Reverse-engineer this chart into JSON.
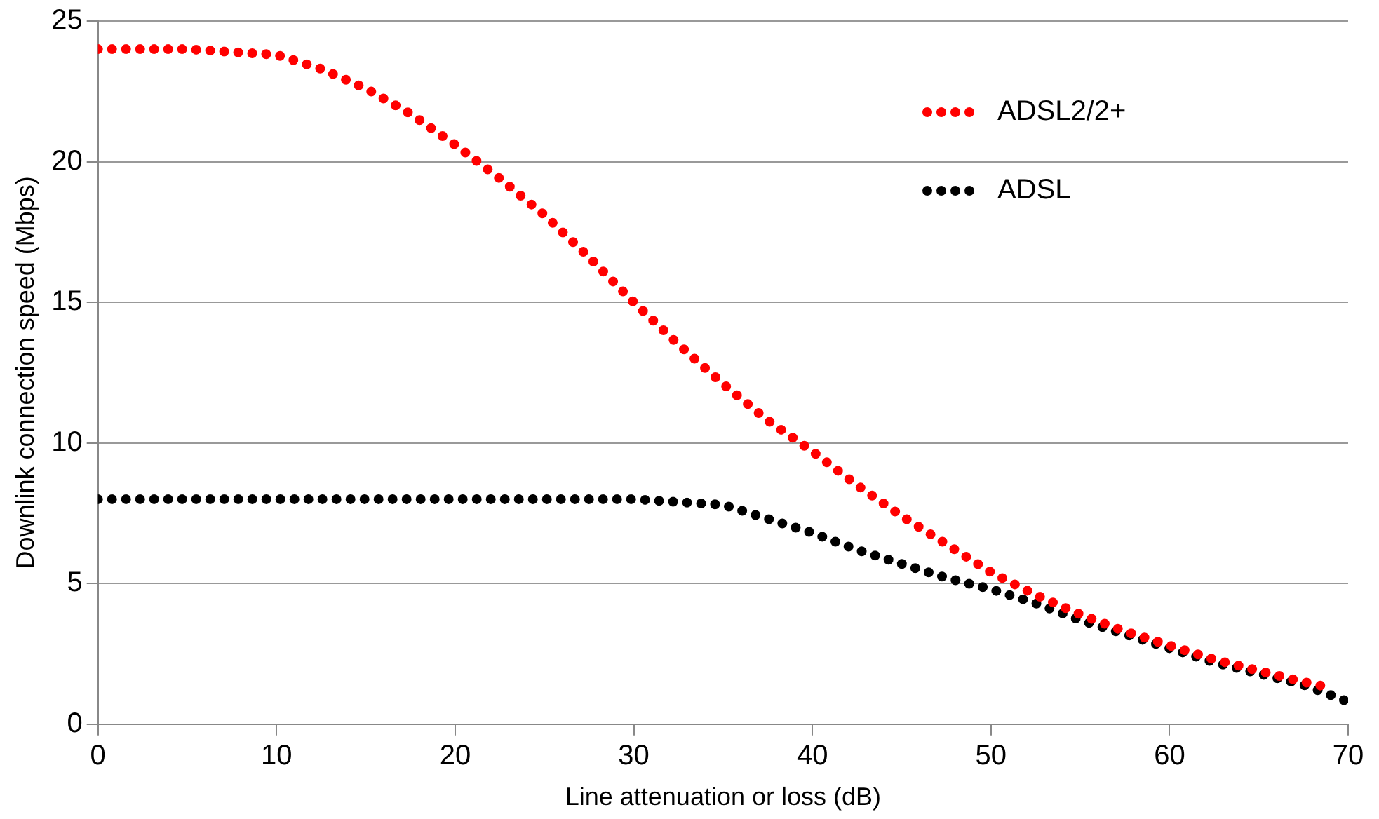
{
  "chart_data": {
    "type": "line",
    "xlabel": "Line attenuation or loss (dB)",
    "ylabel": "Downlink connection speed (Mbps)",
    "xlim": [
      0,
      70
    ],
    "xticks": [
      0,
      10,
      20,
      30,
      40,
      50,
      60,
      70
    ],
    "ylim": [
      0,
      25
    ],
    "yticks": [
      0,
      5,
      10,
      15,
      20,
      25
    ],
    "grid": "y",
    "legend": "top right",
    "line_style": "dotted",
    "marker": "none",
    "series": [
      {
        "name": "ADSL2/2+",
        "color": "#ff0000",
        "x": [
          0,
          2.5,
          5,
          7.5,
          10,
          12.5,
          15,
          17.5,
          20,
          22.5,
          25,
          27.5,
          30,
          32.5,
          35,
          37.5,
          40,
          42.5,
          45,
          47.5,
          50,
          52.5,
          55,
          57.5,
          60,
          62.5,
          65,
          67.5,
          69
        ],
        "values": [
          24,
          24,
          24,
          23.9,
          23.8,
          23.3,
          22.6,
          21.7,
          20.6,
          19.4,
          18.1,
          16.6,
          15,
          13.5,
          12.1,
          10.8,
          9.7,
          8.5,
          7.4,
          6.4,
          5.4,
          4.6,
          3.9,
          3.3,
          2.8,
          2.3,
          1.9,
          1.5,
          1.3
        ]
      },
      {
        "name": "ADSL",
        "color": "#000000",
        "x": [
          0,
          2.5,
          5,
          7.5,
          10,
          12.5,
          15,
          17.5,
          20,
          22.5,
          25,
          27.5,
          30,
          32.5,
          35,
          37.5,
          40,
          42.5,
          45,
          47.5,
          50,
          52.5,
          55,
          57.5,
          60,
          62.5,
          65,
          67.5,
          70
        ],
        "values": [
          8,
          8,
          8,
          8,
          8,
          8,
          8,
          8,
          8,
          8,
          8,
          8,
          8,
          7.9,
          7.8,
          7.3,
          6.8,
          6.2,
          5.7,
          5.2,
          4.8,
          4.3,
          3.7,
          3.2,
          2.7,
          2.2,
          1.8,
          1.4,
          0.8
        ]
      }
    ]
  }
}
